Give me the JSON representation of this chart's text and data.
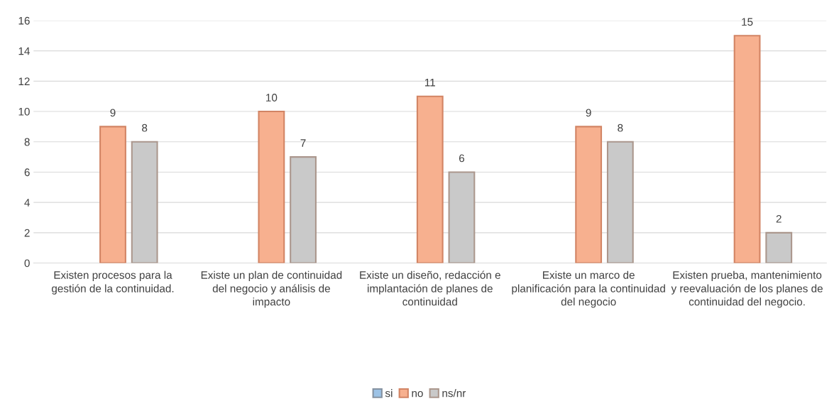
{
  "chart_data": {
    "type": "bar",
    "categories": [
      "Existen procesos para la gestión de la continuidad.",
      "Existe un plan de continuidad del negocio y análisis de impacto",
      "Existe un diseño, redacción e implantación de planes de continuidad",
      "Existe un marco de planificación para la continuidad del negocio",
      "Existen prueba, mantenimiento y reevaluación de los planes de continuidad del negocio."
    ],
    "series": [
      {
        "name": "si",
        "color": "#9dc3e6",
        "values": [
          null,
          null,
          null,
          null,
          null
        ]
      },
      {
        "name": "no",
        "color": "#f7b08f",
        "values": [
          9,
          10,
          11,
          9,
          15
        ]
      },
      {
        "name": "ns/nr",
        "color": "#c9c9c9",
        "values": [
          8,
          7,
          6,
          8,
          2
        ]
      }
    ],
    "ylim": [
      0,
      16
    ],
    "yticks": [
      0,
      2,
      4,
      6,
      8,
      10,
      12,
      14,
      16
    ],
    "grid": "y",
    "legend": "bottom",
    "data_labels": true
  }
}
